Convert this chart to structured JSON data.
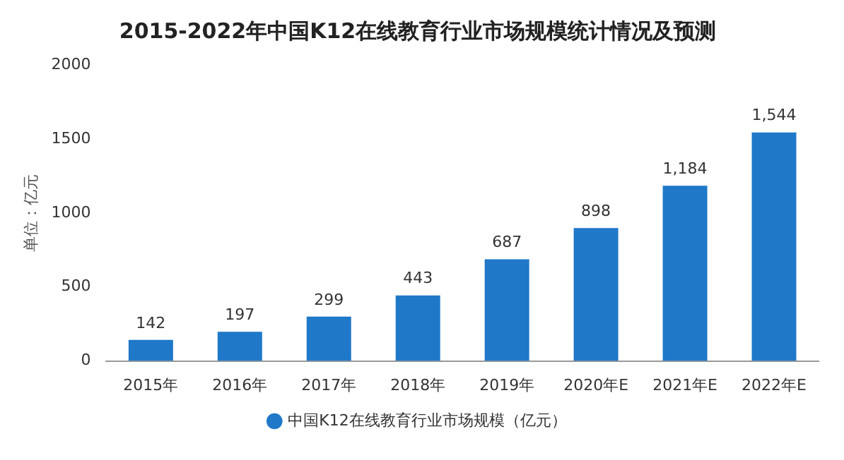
{
  "chart_data": {
    "type": "bar",
    "title": "2015-2022年中国K12在线教育行业市场规模统计情况及预测",
    "ylabel": "单位：亿元",
    "categories": [
      "2015年",
      "2016年",
      "2017年",
      "2018年",
      "2019年",
      "2020年E",
      "2021年E",
      "2022年E"
    ],
    "series": [
      {
        "name": "中国K12在线教育行业市场规模（亿元）",
        "color": "#1f78c8",
        "values": [
          142,
          197,
          299,
          443,
          687,
          898,
          1184,
          1544
        ]
      }
    ],
    "value_labels": [
      "142",
      "197",
      "299",
      "443",
      "687",
      "898",
      "1,184",
      "1,544"
    ],
    "ylim": [
      0,
      2000
    ],
    "yticks": [
      0,
      500,
      1000,
      1500,
      2000
    ],
    "grid": false,
    "legend": "bottom"
  }
}
